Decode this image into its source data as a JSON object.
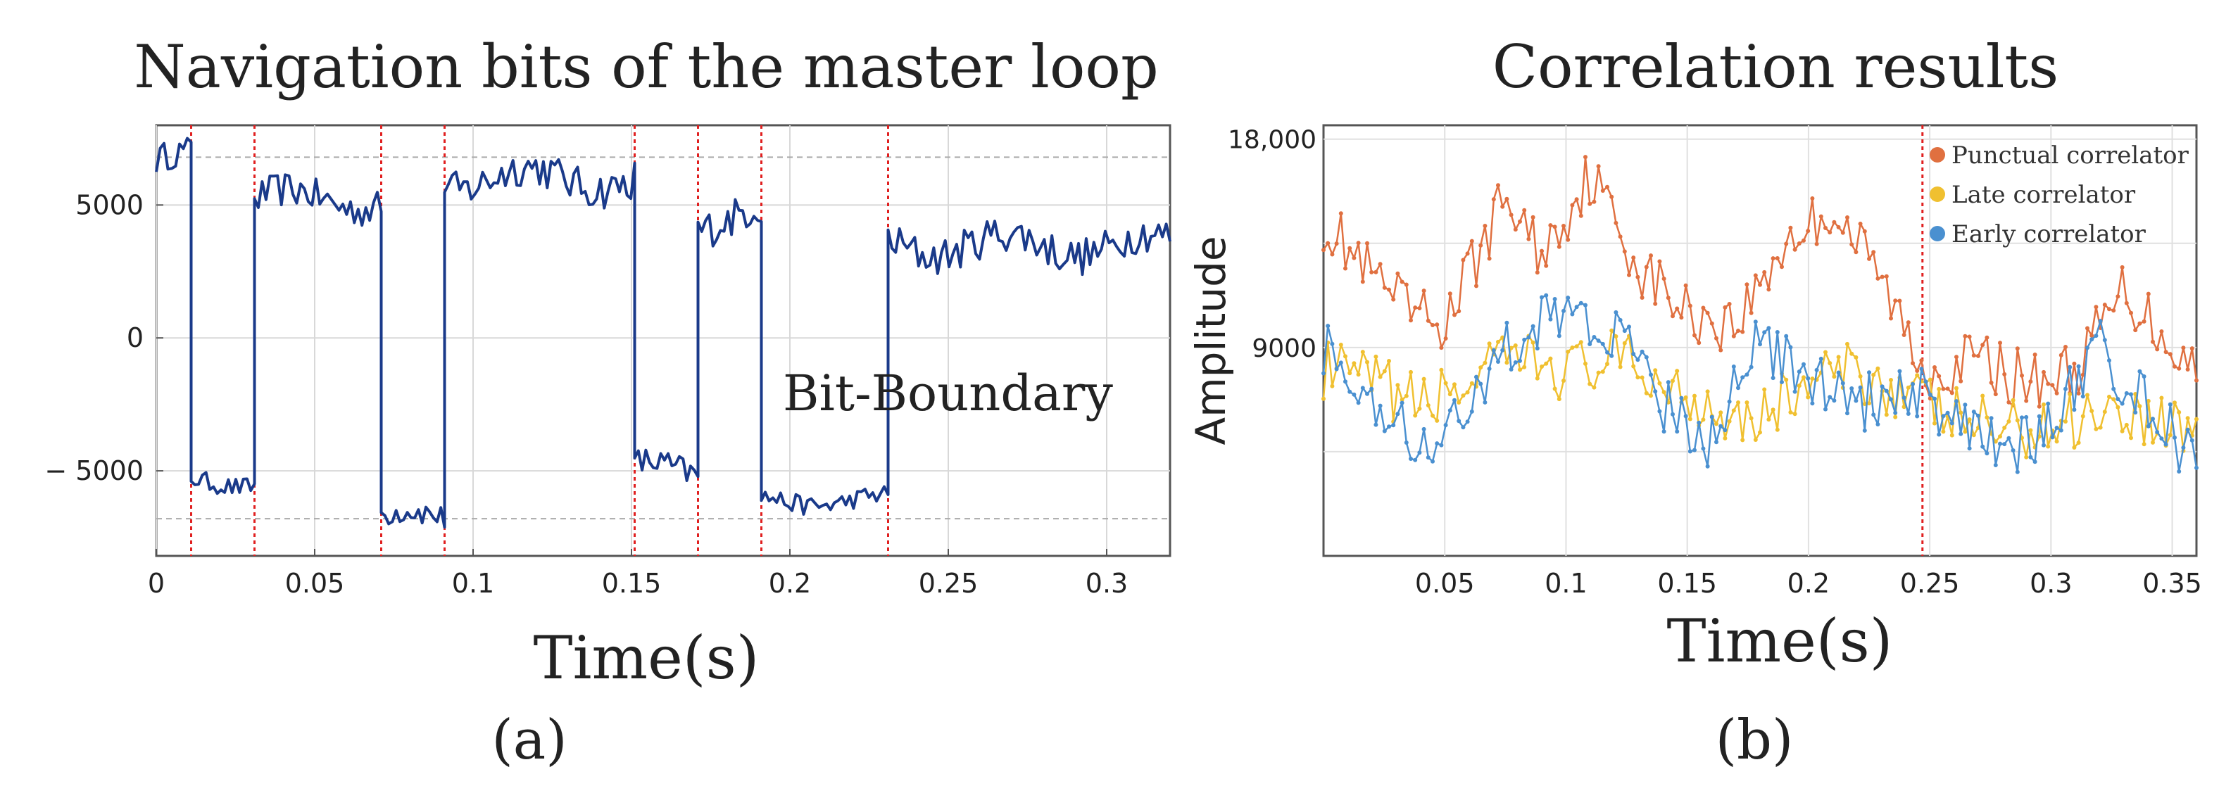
{
  "chart_data": [
    {
      "type": "line",
      "panel_label": "(a)",
      "title": "Navigation bits of the master loop",
      "xlabel": "Time(s)",
      "ylabel": "",
      "xlim": [
        0,
        0.32
      ],
      "ylim": [
        -8200,
        8000
      ],
      "xticks": [
        0,
        0.05,
        0.1,
        0.15,
        0.2,
        0.25,
        0.3
      ],
      "xtick_labels": [
        "0",
        "0.05",
        "0.1",
        "0.15",
        "0.2",
        "0.25",
        "0.3"
      ],
      "yticks": [
        -5000,
        0,
        5000
      ],
      "ytick_labels": [
        "− 5000",
        "0",
        "5000"
      ],
      "grid": true,
      "reference_levels": [
        6800,
        -6800
      ],
      "bit_boundaries": [
        0.011,
        0.031,
        0.071,
        0.091,
        0.151,
        0.171,
        0.191,
        0.231
      ],
      "annotation": "Bit-Boundary",
      "series": [
        {
          "color": "#1a3a8a",
          "segments": [
            {
              "x0": 0.0,
              "x1": 0.011,
              "level": 6700,
              "noise": 700
            },
            {
              "x0": 0.011,
              "x1": 0.031,
              "level": -5400,
              "noise": 450
            },
            {
              "x0": 0.031,
              "x1": 0.071,
              "level": 5200,
              "noise": 800
            },
            {
              "x0": 0.071,
              "x1": 0.091,
              "level": -6800,
              "noise": 600
            },
            {
              "x0": 0.091,
              "x1": 0.151,
              "level": 6000,
              "noise": 900
            },
            {
              "x0": 0.151,
              "x1": 0.171,
              "level": -5000,
              "noise": 700
            },
            {
              "x0": 0.171,
              "x1": 0.191,
              "level": 4500,
              "noise": 900
            },
            {
              "x0": 0.191,
              "x1": 0.231,
              "level": -6100,
              "noise": 450
            },
            {
              "x0": 0.231,
              "x1": 0.32,
              "level": 3500,
              "noise": 900
            }
          ]
        }
      ]
    },
    {
      "type": "line",
      "panel_label": "(b)",
      "title": "Correlation results",
      "xlabel": "Time(s)",
      "ylabel": "Amplitude",
      "xlim": [
        0.0,
        0.36
      ],
      "ylim": [
        0,
        18600
      ],
      "xticks": [
        0.05,
        0.1,
        0.15,
        0.2,
        0.25,
        0.3,
        0.35
      ],
      "xtick_labels": [
        "0.05",
        "0.1",
        "0.15",
        "0.2",
        "0.25",
        "0.3",
        "0.35"
      ],
      "yticks": [
        18000,
        9000
      ],
      "ytick_labels": [
        "18,000",
        "9000"
      ],
      "grid": true,
      "bit_boundary": 0.247,
      "legend_position": "top-right",
      "series": [
        {
          "name": "Punctual correlator",
          "color": "#e07040",
          "x": [
            0.0,
            0.02,
            0.035,
            0.05,
            0.075,
            0.09,
            0.11,
            0.13,
            0.15,
            0.17,
            0.19,
            0.21,
            0.23,
            0.247,
            0.27,
            0.29,
            0.31,
            0.33,
            0.36
          ],
          "y": [
            14500,
            12000,
            10500,
            10000,
            15500,
            13000,
            16500,
            12500,
            10500,
            10000,
            13500,
            15000,
            12000,
            8000,
            8500,
            7500,
            8000,
            11500,
            8000
          ]
        },
        {
          "name": "Late correlator",
          "color": "#f0c030",
          "x": [
            0.0,
            0.02,
            0.04,
            0.06,
            0.08,
            0.1,
            0.12,
            0.14,
            0.16,
            0.18,
            0.2,
            0.22,
            0.24,
            0.26,
            0.28,
            0.3,
            0.32,
            0.34,
            0.36
          ],
          "y": [
            8000,
            7500,
            6500,
            7500,
            8500,
            8000,
            8500,
            7500,
            6500,
            6000,
            7500,
            8000,
            7000,
            6000,
            5500,
            5500,
            6500,
            6000,
            5500
          ]
        },
        {
          "name": "Early correlator",
          "color": "#4a90d0",
          "x": [
            0.0,
            0.02,
            0.04,
            0.06,
            0.08,
            0.1,
            0.12,
            0.14,
            0.16,
            0.18,
            0.2,
            0.22,
            0.24,
            0.26,
            0.28,
            0.3,
            0.32,
            0.34,
            0.36
          ],
          "y": [
            9000,
            6000,
            5000,
            6500,
            9500,
            11000,
            9500,
            6500,
            5000,
            9500,
            7500,
            6500,
            7500,
            5500,
            4500,
            5500,
            9000,
            6500,
            4000
          ]
        }
      ]
    }
  ]
}
